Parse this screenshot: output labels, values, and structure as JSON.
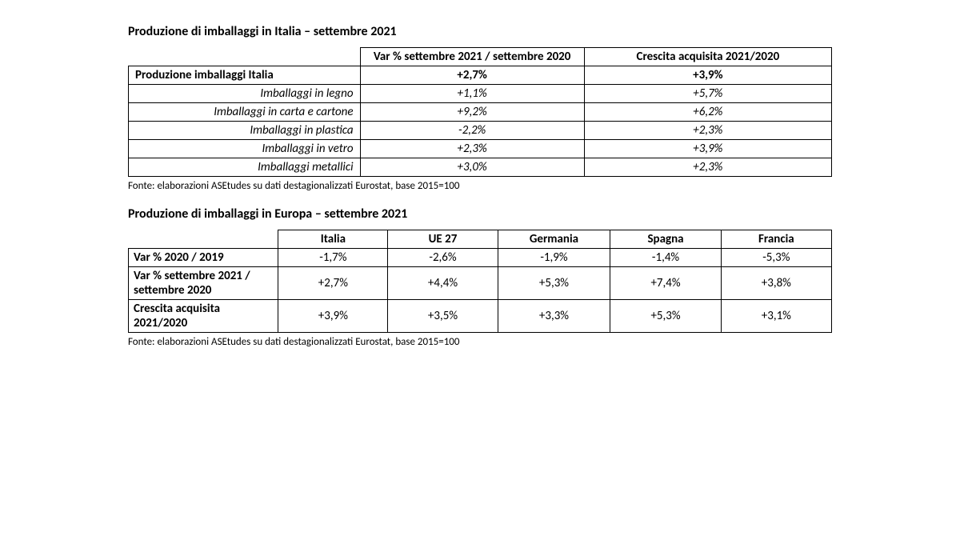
{
  "table1": {
    "title": "Produzione di imballaggi in Italia – settembre 2021",
    "headers": {
      "col1": "Var % settembre 2021 / settembre 2020",
      "col2": "Crescita acquisita 2021/2020"
    },
    "rows": [
      {
        "label": "Produzione imballaggi Italia",
        "v1": "+2,7%",
        "v2": "+3,9%",
        "bold": true
      },
      {
        "label": "Imballaggi in legno",
        "v1": "+1,1%",
        "v2": "+5,7%",
        "bold": false
      },
      {
        "label": "Imballaggi in carta e cartone",
        "v1": "+9,2%",
        "v2": "+6,2%",
        "bold": false
      },
      {
        "label": "Imballaggi in plastica",
        "v1": "-2,2%",
        "v2": "+2,3%",
        "bold": false
      },
      {
        "label": "Imballaggi in vetro",
        "v1": "+2,3%",
        "v2": "+3,9%",
        "bold": false
      },
      {
        "label": "Imballaggi metallici",
        "v1": "+3,0%",
        "v2": "+2,3%",
        "bold": false
      }
    ],
    "source": "Fonte: elaborazioni ASEtudes su dati destagionalizzati Eurostat, base 2015=100"
  },
  "table2": {
    "title": "Produzione di imballaggi in Europa – settembre 2021",
    "headers": [
      "Italia",
      "UE 27",
      "Germania",
      "Spagna",
      "Francia"
    ],
    "rows": [
      {
        "label": "Var % 2020 / 2019",
        "vals": [
          "-1,7%",
          "-2,6%",
          "-1,9%",
          "-1,4%",
          "-5,3%"
        ]
      },
      {
        "label": "Var % settembre 2021 / settembre 2020",
        "vals": [
          "+2,7%",
          "+4,4%",
          "+5,3%",
          "+7,4%",
          "+3,8%"
        ]
      },
      {
        "label": "Crescita acquisita 2021/2020",
        "vals": [
          "+3,9%",
          "+3,5%",
          "+3,3%",
          "+5,3%",
          "+3,1%"
        ]
      }
    ],
    "source": "Fonte: elaborazioni ASEtudes su dati destagionalizzati Eurostat, base 2015=100"
  },
  "style": {
    "background_color": "#ffffff",
    "text_color": "#000000",
    "border_color": "#000000",
    "title_fontsize": 16,
    "body_fontsize": 15,
    "source_fontsize": 13,
    "font_family": "Calibri"
  }
}
